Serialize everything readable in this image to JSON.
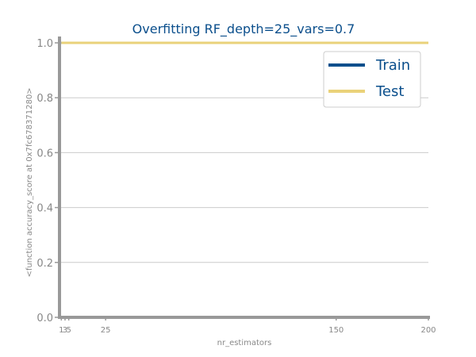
{
  "chart_data": {
    "type": "line",
    "title": "Overfitting RF_depth=25_vars=0.7",
    "xlabel": "nr_estimators",
    "ylabel": "<function accuracy_score at 0x7fc678371280>",
    "xlim": [
      0,
      200
    ],
    "ylim": [
      0.0,
      1.0
    ],
    "xticks": [
      1,
      3,
      5,
      25,
      150,
      200
    ],
    "xtick_labels": [
      "1",
      "3",
      "5",
      "25",
      "150",
      "200"
    ],
    "yticks": [
      0.0,
      0.2,
      0.4,
      0.6,
      0.8,
      1.0
    ],
    "ytick_labels": [
      "0.0",
      "0.2",
      "0.4",
      "0.6",
      "0.8",
      "1.0"
    ],
    "grid": "horizontal",
    "legend_position": "top-right",
    "x": [
      1,
      3,
      5,
      25,
      150,
      200
    ],
    "series": [
      {
        "name": "Train",
        "color": "#0b4f8c",
        "values": [
          1.0,
          1.0,
          1.0,
          1.0,
          1.0,
          1.0
        ]
      },
      {
        "name": "Test",
        "color": "#ead27a",
        "values": [
          1.0,
          1.0,
          1.0,
          1.0,
          1.0,
          1.0
        ]
      }
    ]
  }
}
